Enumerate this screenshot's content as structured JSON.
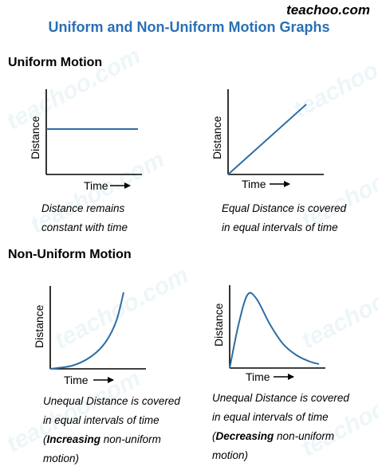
{
  "brand": "teachoo.com",
  "watermark": "teachoo.com",
  "title": "Uniform and Non-Uniform Motion Graphs",
  "sections": {
    "uniform": "Uniform Motion",
    "nonuniform": "Non-Uniform Motion"
  },
  "axis_labels": {
    "x": "Time",
    "y": "Distance"
  },
  "colors": {
    "title": "#2A6FB5",
    "curve": "#2E6DA4",
    "axis": "#000000"
  },
  "captions": {
    "g1": [
      "Distance remains",
      "constant with time"
    ],
    "g2": [
      "Equal Distance is covered",
      "in equal intervals of time"
    ],
    "g3": {
      "line1": "Unequal Distance is covered",
      "line2": "in equal intervals of time",
      "line3_open": "(",
      "line3_bold": "Increasing",
      "line3_rest": " non-uniform",
      "line4": "motion)"
    },
    "g4": {
      "line1": "Unequal Distance is covered",
      "line2": "in equal intervals of time",
      "line3_open": "(",
      "line3_bold": "Decreasing",
      "line3_rest": " non-uniform",
      "line4": "motion)"
    }
  },
  "chart_data": [
    {
      "type": "line",
      "xlabel": "Time",
      "ylabel": "Distance",
      "shape": "constant",
      "x": [
        0,
        1
      ],
      "y": [
        0.57,
        0.57
      ]
    },
    {
      "type": "line",
      "xlabel": "Time",
      "ylabel": "Distance",
      "shape": "linear increasing",
      "x": [
        0,
        1
      ],
      "y": [
        0,
        0.88
      ]
    },
    {
      "type": "line",
      "xlabel": "Time",
      "ylabel": "Distance",
      "shape": "increasing slope (convex)",
      "x": [
        0,
        0.3,
        0.55,
        0.75,
        0.9,
        1.0
      ],
      "y": [
        0,
        0.04,
        0.15,
        0.33,
        0.6,
        0.96
      ]
    },
    {
      "type": "line",
      "xlabel": "Time",
      "ylabel": "Distance",
      "shape": "rise then decay",
      "x": [
        0,
        0.1,
        0.2,
        0.3,
        0.45,
        0.6,
        0.75,
        0.9,
        1.0
      ],
      "y": [
        0,
        0.55,
        0.92,
        0.87,
        0.55,
        0.3,
        0.16,
        0.08,
        0.05
      ]
    }
  ]
}
